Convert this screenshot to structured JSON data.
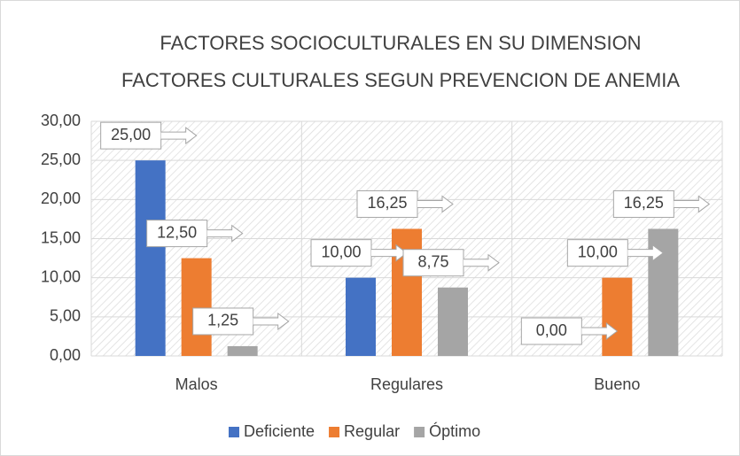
{
  "chart_data": {
    "type": "bar",
    "title": [
      "FACTORES SOCIOCULTURALES EN SU DIMENSION",
      "FACTORES CULTURALES SEGUN PREVENCION DE ANEMIA"
    ],
    "categories": [
      "Malos",
      "Regulares",
      "Bueno"
    ],
    "series": [
      {
        "name": "Deficiente",
        "color": "#4472c4",
        "values": [
          25,
          10,
          0
        ],
        "value_labels": [
          "25,00",
          "10,00",
          "0,00"
        ]
      },
      {
        "name": "Regular",
        "color": "#ed7d31",
        "values": [
          12.5,
          16.25,
          10
        ],
        "value_labels": [
          "12,50",
          "16,25",
          "10,00"
        ]
      },
      {
        "name": "Óptimo",
        "color": "#a5a5a5",
        "values": [
          1.25,
          8.75,
          16.25
        ],
        "value_labels": [
          "1,25",
          "8,75",
          "16,25"
        ]
      }
    ],
    "ylim": [
      0,
      30
    ],
    "yticks": [
      {
        "value": 0,
        "label": "0,00"
      },
      {
        "value": 5,
        "label": "5,00"
      },
      {
        "value": 10,
        "label": "10,00"
      },
      {
        "value": 15,
        "label": "15,00"
      },
      {
        "value": 20,
        "label": "20,00"
      },
      {
        "value": 25,
        "label": "25,00"
      },
      {
        "value": 30,
        "label": "30,00"
      }
    ],
    "grid": true,
    "legend": "bottom"
  }
}
